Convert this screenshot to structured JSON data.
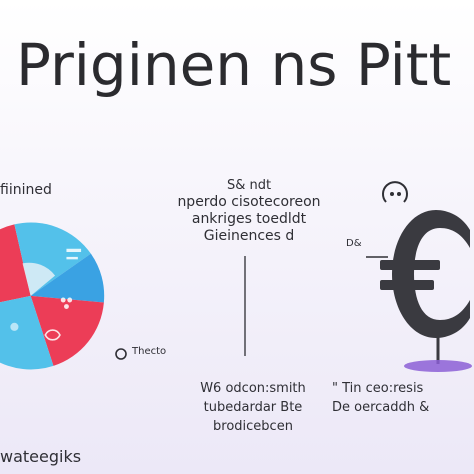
{
  "title": "Priginen ns Pitt",
  "labels": {
    "left_top": "fiinined",
    "bottom_left": "wateegiks",
    "mid_ticker": "Thecto",
    "mid_lines": [
      "S& ndt",
      "nperdo cisotecoreon",
      "ankriges toedldt",
      "Gieinences d"
    ],
    "right_tag": "D&",
    "bottom_mid_lines": [
      "W6 odcon:smith",
      "tubedardar Bte",
      "brodicebcen"
    ],
    "bottom_right_lines": [
      "\" Tin ceo:resis",
      "De oercaddh &"
    ]
  },
  "colors": {
    "red": "#ec3d57",
    "light_blue": "#53c1ea",
    "blue": "#3aa2e3",
    "pale": "#eef2f7",
    "dark_gray": "#3a3a40",
    "purple": "#8c5fd6"
  },
  "icons": [
    "pie-chart-icon",
    "euro-icon",
    "smiley-icon"
  ]
}
